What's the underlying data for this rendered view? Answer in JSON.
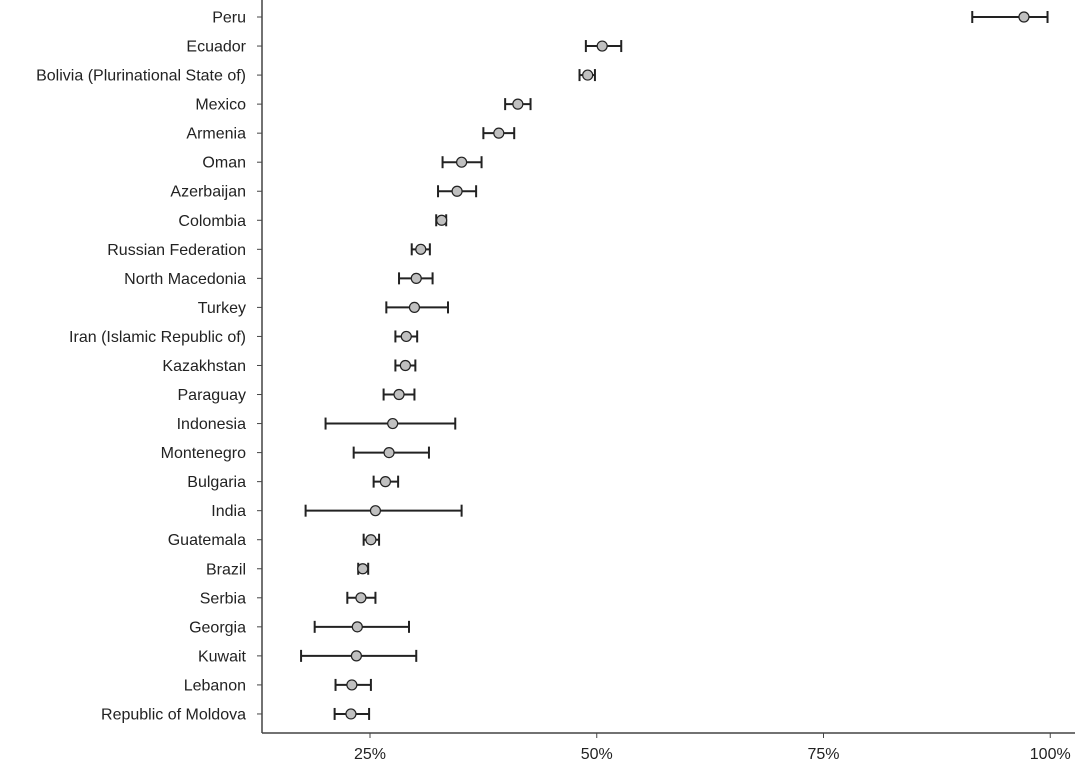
{
  "chart_data": {
    "type": "scatter",
    "subtype": "dot-with-error-bars",
    "title": "",
    "xlabel": "",
    "ylabel": "",
    "xlim": [
      13.3,
      103.2
    ],
    "xticks": [
      25,
      50,
      75,
      100
    ],
    "xtick_labels": [
      "25%",
      "50%",
      "75%",
      "100%"
    ],
    "grid": false,
    "colors": {
      "point_fill": "#c0c0c0",
      "line": "#222222",
      "axis": "#444444"
    },
    "categories": [
      "Peru",
      "Ecuador",
      "Bolivia (Plurinational State of)",
      "Mexico",
      "Armenia",
      "Oman",
      "Azerbaijan",
      "Colombia",
      "Russian Federation",
      "North Macedonia",
      "Turkey",
      "Iran (Islamic Republic of)",
      "Kazakhstan",
      "Paraguay",
      "Indonesia",
      "Montenegro",
      "Bulgaria",
      "India",
      "Guatemala",
      "Brazil",
      "Serbia",
      "Georgia",
      "Kuwait",
      "Lebanon",
      "Republic of Moldova"
    ],
    "values": [
      97.1,
      50.6,
      49.0,
      41.3,
      39.2,
      35.1,
      34.6,
      32.9,
      30.6,
      30.1,
      29.9,
      29.0,
      28.9,
      28.2,
      27.5,
      27.1,
      26.7,
      25.6,
      25.1,
      24.2,
      24.0,
      23.6,
      23.5,
      23.0,
      22.9
    ],
    "lower": [
      91.4,
      48.8,
      48.1,
      39.9,
      37.5,
      33.0,
      32.5,
      32.3,
      29.6,
      28.2,
      26.8,
      27.8,
      27.8,
      26.5,
      20.1,
      23.2,
      25.4,
      17.9,
      24.3,
      23.7,
      22.5,
      18.9,
      17.4,
      21.2,
      21.1
    ],
    "upper": [
      99.7,
      52.7,
      49.8,
      42.7,
      40.9,
      37.3,
      36.7,
      33.4,
      31.6,
      31.9,
      33.6,
      30.2,
      30.0,
      29.9,
      34.4,
      31.5,
      28.1,
      35.1,
      26.0,
      24.8,
      25.6,
      29.3,
      30.1,
      25.1,
      24.9
    ]
  }
}
